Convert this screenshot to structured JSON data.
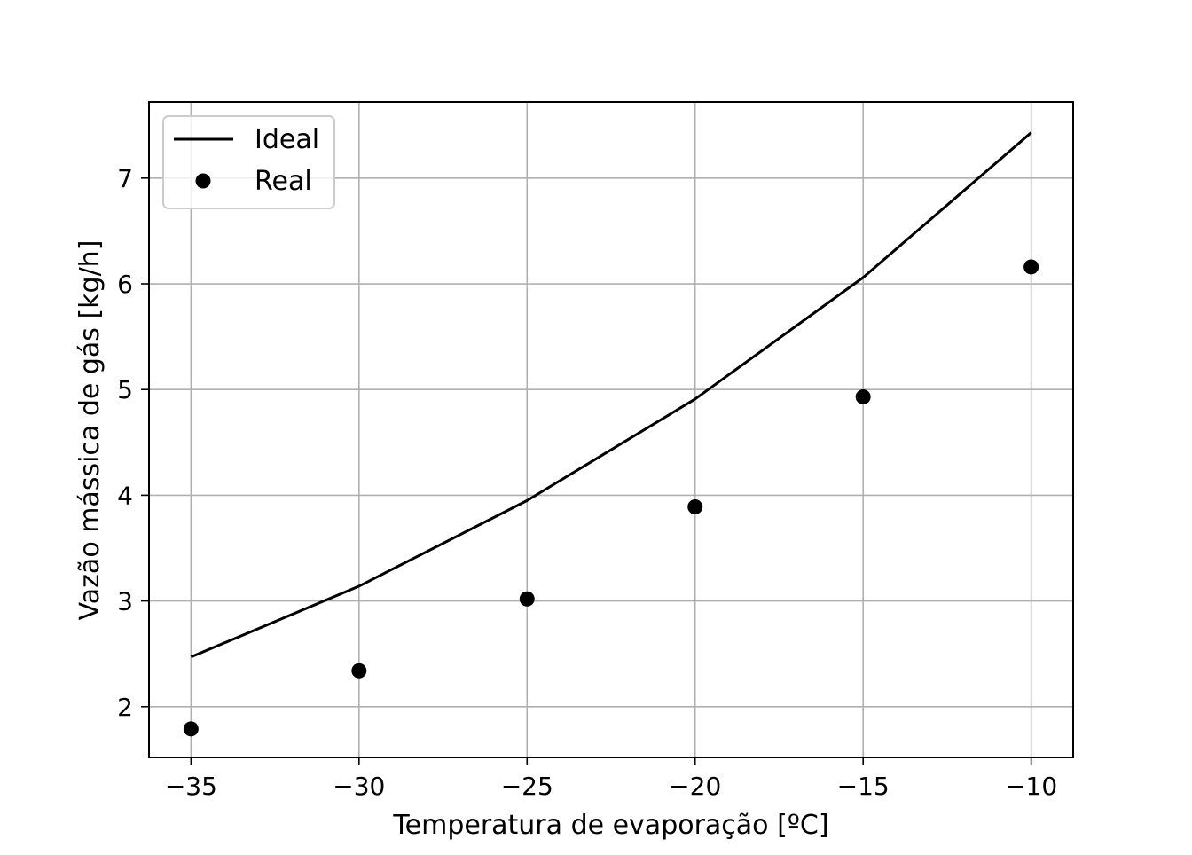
{
  "chart_data": {
    "type": "line",
    "xlabel": "Temperatura de evaporação [ºC]",
    "ylabel": "Vazão mássica de gás [kg/h]",
    "xlim": [
      -36.25,
      -8.75
    ],
    "ylim": [
      1.52,
      7.72
    ],
    "xticks": [
      -35,
      -30,
      -25,
      -20,
      -15,
      -10
    ],
    "xtick_labels": [
      "−35",
      "−30",
      "−25",
      "−20",
      "−15",
      "−10"
    ],
    "yticks": [
      2,
      3,
      4,
      5,
      6,
      7
    ],
    "ytick_labels": [
      "2",
      "3",
      "4",
      "5",
      "6",
      "7"
    ],
    "grid": true,
    "legend": "upper left",
    "series": [
      {
        "name": "Ideal",
        "style": "line",
        "color": "#000000",
        "x": [
          -35,
          -30,
          -25,
          -20,
          -15,
          -10
        ],
        "y": [
          2.47,
          3.14,
          3.95,
          4.91,
          6.06,
          7.43
        ]
      },
      {
        "name": "Real",
        "style": "markers",
        "color": "#000000",
        "x": [
          -35,
          -30,
          -25,
          -20,
          -15,
          -10
        ],
        "y": [
          1.79,
          2.34,
          3.02,
          3.89,
          4.93,
          6.16
        ]
      }
    ]
  }
}
